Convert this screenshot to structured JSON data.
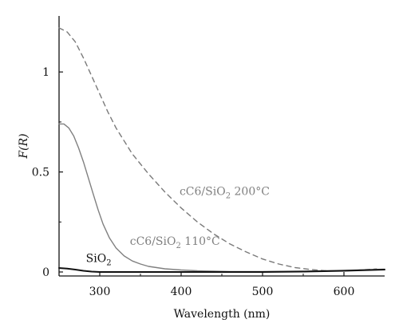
{
  "chart_data": {
    "type": "line",
    "xlabel": "Wavelength (nm)",
    "ylabel": "F(R)",
    "xlim": [
      250,
      650
    ],
    "ylim": [
      -0.02,
      1.28
    ],
    "xticks": [
      300,
      400,
      500,
      600
    ],
    "xtick_labels": [
      "300",
      "400",
      "500",
      "600"
    ],
    "yticks": [
      0,
      0.5,
      1
    ],
    "ytick_labels": [
      "0",
      "0.5",
      "1"
    ],
    "grid": false,
    "legend": "none",
    "series": [
      {
        "key": "s200",
        "color": "#7a7a7a",
        "dash": "dashed",
        "x": [
          250,
          260,
          270,
          280,
          290,
          300,
          310,
          320,
          340,
          360,
          380,
          400,
          420,
          440,
          460,
          480,
          500,
          520,
          540,
          560,
          580,
          600,
          620,
          640
        ],
        "y": [
          1.22,
          1.2,
          1.15,
          1.07,
          0.98,
          0.89,
          0.8,
          0.72,
          0.59,
          0.49,
          0.4,
          0.32,
          0.25,
          0.19,
          0.14,
          0.1,
          0.065,
          0.04,
          0.022,
          0.012,
          0.006,
          0.005,
          0.01,
          0.015
        ]
      },
      {
        "key": "s110",
        "color": "#808080",
        "dash": "solid",
        "x": [
          250,
          256,
          262,
          268,
          274,
          280,
          286,
          292,
          298,
          304,
          312,
          320,
          330,
          340,
          350,
          360,
          380,
          400,
          420,
          440,
          460,
          500,
          550,
          600,
          650
        ],
        "y": [
          0.74,
          0.74,
          0.72,
          0.68,
          0.62,
          0.55,
          0.47,
          0.39,
          0.31,
          0.24,
          0.17,
          0.12,
          0.08,
          0.055,
          0.04,
          0.028,
          0.016,
          0.01,
          0.006,
          0.004,
          0.002,
          0.002,
          0.004,
          0.008,
          0.014
        ]
      },
      {
        "key": "sio2",
        "color": "#111111",
        "dash": "solid",
        "x": [
          250,
          260,
          270,
          280,
          290,
          300,
          350,
          400,
          450,
          500,
          550,
          600,
          650
        ],
        "y": [
          0.02,
          0.017,
          0.012,
          0.006,
          0.002,
          0.0,
          0.0,
          0.0,
          0.0,
          0.0,
          0.002,
          0.006,
          0.012
        ]
      }
    ],
    "annotations": [
      {
        "key": "a200",
        "color": "#808080",
        "text": "cC6/SiO",
        "sub": "2",
        "tail": " 200°C",
        "x": 398,
        "y": 0.385
      },
      {
        "key": "a110",
        "color": "#808080",
        "text": "cC6/SiO",
        "sub": "2",
        "tail": " 110°C",
        "x": 337,
        "y": 0.135
      },
      {
        "key": "asio2",
        "color": "#111111",
        "text": "SiO",
        "sub": "2",
        "tail": "",
        "x": 283,
        "y": 0.05
      }
    ]
  }
}
